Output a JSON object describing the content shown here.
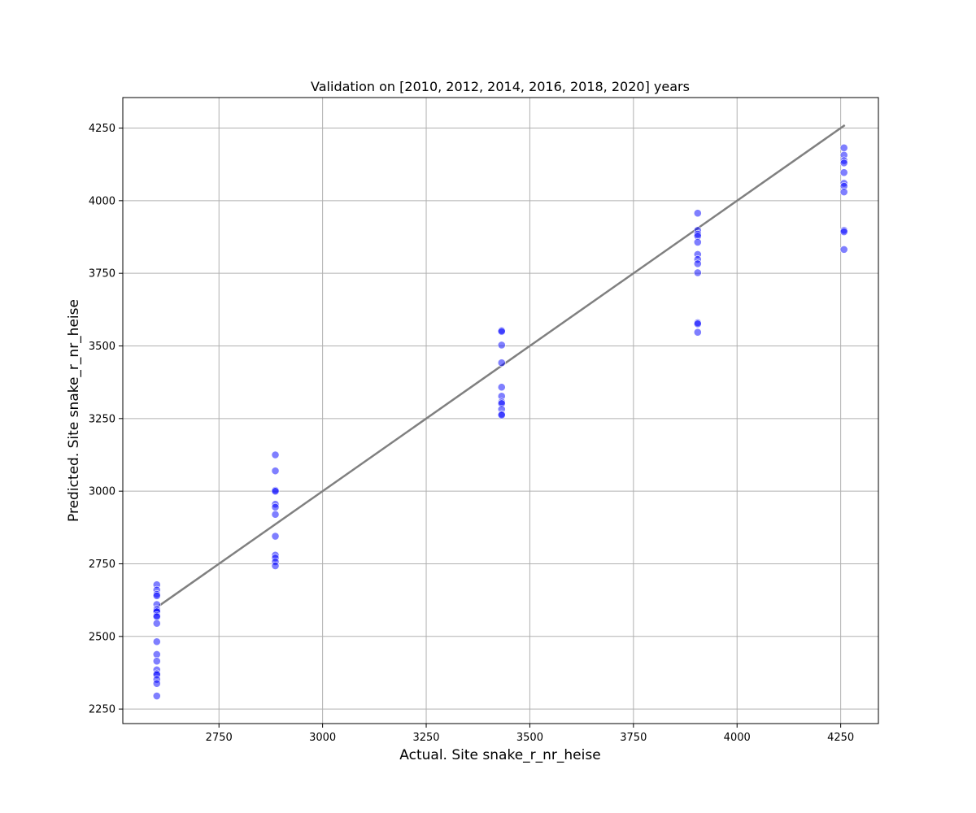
{
  "chart_data": {
    "type": "scatter",
    "title": "Validation on [2010, 2012, 2014, 2016, 2018, 2020] years",
    "xlabel": "Actual. Site snake_r_nr_heise",
    "ylabel": "Predicted. Site snake_r_nr_heise",
    "xlim": [
      2518,
      4341
    ],
    "ylim": [
      2200,
      4355
    ],
    "xticks": [
      2750,
      3000,
      3250,
      3500,
      3750,
      4000,
      4250
    ],
    "yticks": [
      2250,
      2500,
      2750,
      3000,
      3250,
      3500,
      3750,
      4000,
      4250
    ],
    "grid": true,
    "point_color": "#0000ff",
    "line_color": "#808080",
    "reference_line": {
      "x": [
        2600,
        4260
      ],
      "y": [
        2600,
        4260
      ]
    },
    "series": [
      {
        "points": [
          [
            2600,
            2678
          ],
          [
            2600,
            2660
          ],
          [
            2600,
            2645
          ],
          [
            2600,
            2640
          ],
          [
            2600,
            2610
          ],
          [
            2600,
            2595
          ],
          [
            2600,
            2590
          ],
          [
            2600,
            2585
          ],
          [
            2600,
            2572
          ],
          [
            2600,
            2568
          ],
          [
            2600,
            2545
          ],
          [
            2600,
            2482
          ],
          [
            2600,
            2438
          ],
          [
            2600,
            2415
          ],
          [
            2600,
            2385
          ],
          [
            2600,
            2372
          ],
          [
            2600,
            2368
          ],
          [
            2600,
            2352
          ],
          [
            2600,
            2338
          ],
          [
            2600,
            2295
          ],
          [
            2886,
            3125
          ],
          [
            2886,
            3070
          ],
          [
            2886,
            3003
          ],
          [
            2886,
            3000
          ],
          [
            2886,
            2955
          ],
          [
            2886,
            2945
          ],
          [
            2886,
            2920
          ],
          [
            2886,
            2845
          ],
          [
            2886,
            2780
          ],
          [
            2886,
            2770
          ],
          [
            2886,
            2757
          ],
          [
            2886,
            2743
          ],
          [
            3432,
            3553
          ],
          [
            3432,
            3550
          ],
          [
            3432,
            3503
          ],
          [
            3432,
            3442
          ],
          [
            3432,
            3358
          ],
          [
            3432,
            3327
          ],
          [
            3432,
            3307
          ],
          [
            3432,
            3302
          ],
          [
            3432,
            3282
          ],
          [
            3432,
            3265
          ],
          [
            3432,
            3262
          ],
          [
            3905,
            3957
          ],
          [
            3905,
            3898
          ],
          [
            3905,
            3885
          ],
          [
            3905,
            3878
          ],
          [
            3905,
            3857
          ],
          [
            3905,
            3815
          ],
          [
            3905,
            3798
          ],
          [
            3905,
            3783
          ],
          [
            3905,
            3752
          ],
          [
            3905,
            3580
          ],
          [
            3905,
            3576
          ],
          [
            3905,
            3547
          ],
          [
            4258,
            4182
          ],
          [
            4258,
            4157
          ],
          [
            4258,
            4138
          ],
          [
            4258,
            4130
          ],
          [
            4258,
            4097
          ],
          [
            4258,
            4060
          ],
          [
            4258,
            4050
          ],
          [
            4258,
            4030
          ],
          [
            4258,
            3898
          ],
          [
            4258,
            3893
          ],
          [
            4258,
            3832
          ]
        ]
      }
    ]
  }
}
